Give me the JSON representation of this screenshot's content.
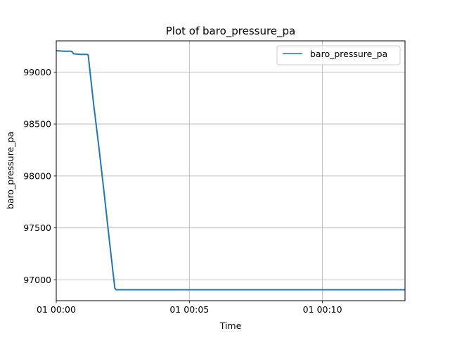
{
  "chart_data": {
    "type": "line",
    "title": "Plot of baro_pressure_pa",
    "xlabel": "Time",
    "ylabel": "baro_pressure_pa",
    "x_unit": "minutes",
    "xlim": [
      0,
      13.1
    ],
    "ylim": [
      96800,
      99300
    ],
    "x_ticks": [
      {
        "value": 0,
        "label": "01 00:00"
      },
      {
        "value": 5,
        "label": "01 00:05"
      },
      {
        "value": 10,
        "label": "01 00:10"
      }
    ],
    "y_ticks": [
      {
        "value": 97000,
        "label": "97000"
      },
      {
        "value": 97500,
        "label": "97500"
      },
      {
        "value": 98000,
        "label": "98000"
      },
      {
        "value": 98500,
        "label": "98500"
      },
      {
        "value": 99000,
        "label": "99000"
      }
    ],
    "grid": true,
    "legend_position": "top-right",
    "series": [
      {
        "name": "baro_pressure_pa",
        "color": "#1f77b4",
        "points": [
          [
            0.0,
            99205
          ],
          [
            0.3,
            99200
          ],
          [
            0.55,
            99200
          ],
          [
            0.6,
            99195
          ],
          [
            0.65,
            99175
          ],
          [
            0.9,
            99170
          ],
          [
            1.15,
            99170
          ],
          [
            1.2,
            99165
          ],
          [
            1.4,
            98700
          ],
          [
            1.6,
            98280
          ],
          [
            1.8,
            97830
          ],
          [
            2.0,
            97370
          ],
          [
            2.2,
            96920
          ],
          [
            2.25,
            96905
          ],
          [
            3.0,
            96905
          ],
          [
            5.0,
            96905
          ],
          [
            8.0,
            96905
          ],
          [
            10.0,
            96905
          ],
          [
            13.1,
            96905
          ]
        ]
      }
    ]
  }
}
